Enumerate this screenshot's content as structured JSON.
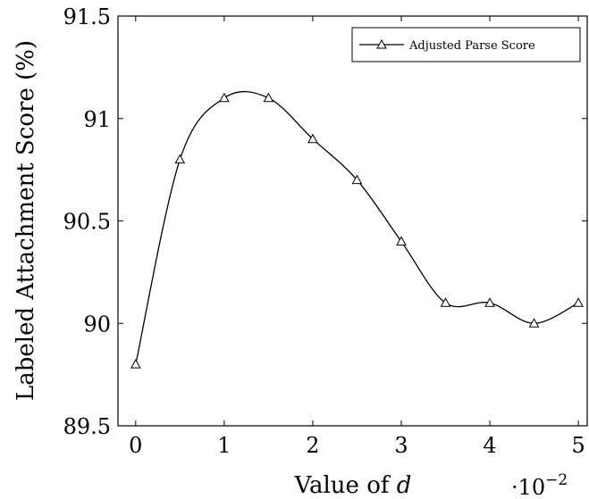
{
  "chart_data": {
    "type": "line",
    "x": [
      0,
      0.5,
      1,
      1.5,
      2,
      2.5,
      3,
      3.5,
      4,
      4.5,
      5
    ],
    "series": [
      {
        "name": "Adjusted Parse Score",
        "values": [
          89.8,
          90.8,
          91.1,
          91.1,
          90.9,
          90.7,
          90.4,
          90.1,
          90.1,
          90.0,
          90.1
        ],
        "marker": "triangle",
        "color": "#000000"
      }
    ],
    "xlabel": "Value of ",
    "xlabel_var": "d",
    "x_scale_base": "·10",
    "x_scale_exp": "−2",
    "ylabel": "Labeled Attachment Score (%)",
    "xticks": [
      0,
      1,
      2,
      3,
      4,
      5
    ],
    "xtick_labels": [
      "0",
      "1",
      "2",
      "3",
      "4",
      "5"
    ],
    "yticks": [
      89.5,
      90,
      90.5,
      91,
      91.5
    ],
    "ytick_labels": [
      "89.5",
      "90",
      "90.5",
      "91",
      "91.5"
    ],
    "xlim": [
      -0.2,
      5.1
    ],
    "ylim": [
      89.5,
      91.5
    ],
    "grid": false,
    "legend_position": "top-right"
  }
}
